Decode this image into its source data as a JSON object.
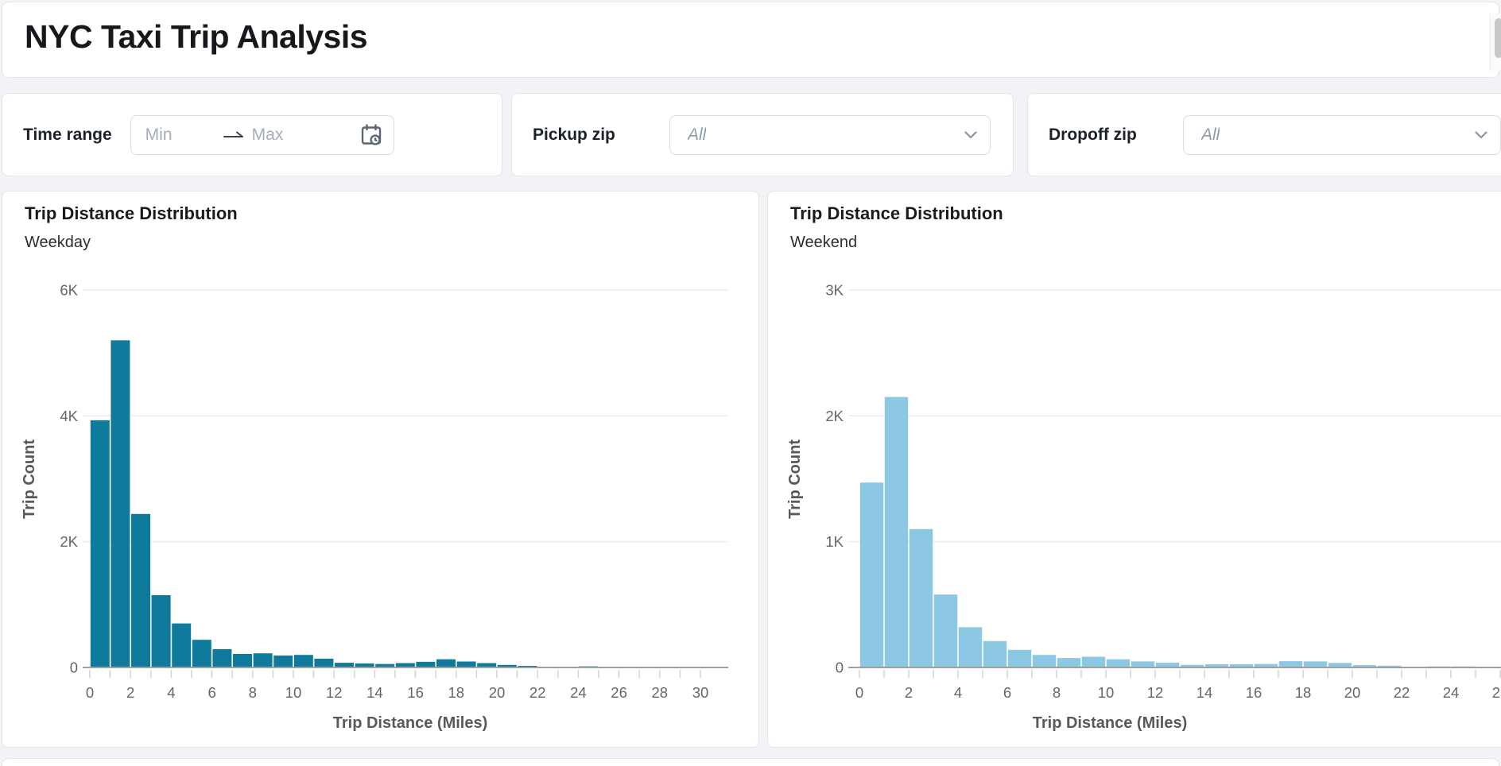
{
  "page": {
    "title": "NYC Taxi Trip Analysis"
  },
  "filter_bar": {
    "time_range": {
      "label": "Time range",
      "min_placeholder": "Min",
      "max_placeholder": "Max"
    },
    "pickup_zip": {
      "label": "Pickup zip",
      "value": "All"
    },
    "dropoff_zip": {
      "label": "Dropoff zip",
      "value": "All"
    }
  },
  "colors": {
    "weekday_bar": "#0e7b9d",
    "weekend_bar": "#8cc8e3",
    "gridline": "#ececec",
    "axis_line": "#a0a0a0",
    "tick_text": "#666666",
    "axis_title_text": "#595959"
  },
  "chart_data": [
    {
      "type": "bar",
      "subtype": "histogram",
      "title": "Trip Distance Distribution",
      "subtitle": "Weekday",
      "xlabel": "Trip Distance (Miles)",
      "ylabel": "Trip Count",
      "color": "#0e7b9d",
      "bin_width_miles": 1,
      "x_domain": [
        0,
        30
      ],
      "x_tick_step": 2,
      "ylim": [
        0,
        6000
      ],
      "y_ticks": [
        {
          "v": 0,
          "label": "0"
        },
        {
          "v": 2000,
          "label": "2K"
        },
        {
          "v": 4000,
          "label": "4K"
        },
        {
          "v": 6000,
          "label": "6K"
        }
      ],
      "values": [
        3930,
        5200,
        2440,
        1150,
        700,
        440,
        290,
        215,
        225,
        190,
        200,
        140,
        75,
        65,
        55,
        70,
        90,
        130,
        95,
        70,
        40,
        25,
        12,
        8,
        18,
        10,
        6,
        4,
        3,
        6
      ]
    },
    {
      "type": "bar",
      "subtype": "histogram",
      "title": "Trip Distance Distribution",
      "subtitle": "Weekend",
      "xlabel": "Trip Distance (Miles)",
      "ylabel": "Trip Count",
      "color": "#8cc8e3",
      "bin_width_miles": 1,
      "x_domain": [
        0,
        26
      ],
      "x_tick_step": 2,
      "ylim": [
        0,
        3000
      ],
      "y_ticks": [
        {
          "v": 0,
          "label": "0"
        },
        {
          "v": 1000,
          "label": "1K"
        },
        {
          "v": 2000,
          "label": "2K"
        },
        {
          "v": 3000,
          "label": "3K"
        }
      ],
      "values": [
        1470,
        2150,
        1100,
        580,
        320,
        210,
        140,
        100,
        75,
        85,
        65,
        48,
        38,
        20,
        25,
        25,
        28,
        50,
        48,
        36,
        18,
        14,
        6,
        8,
        8,
        6
      ]
    }
  ]
}
